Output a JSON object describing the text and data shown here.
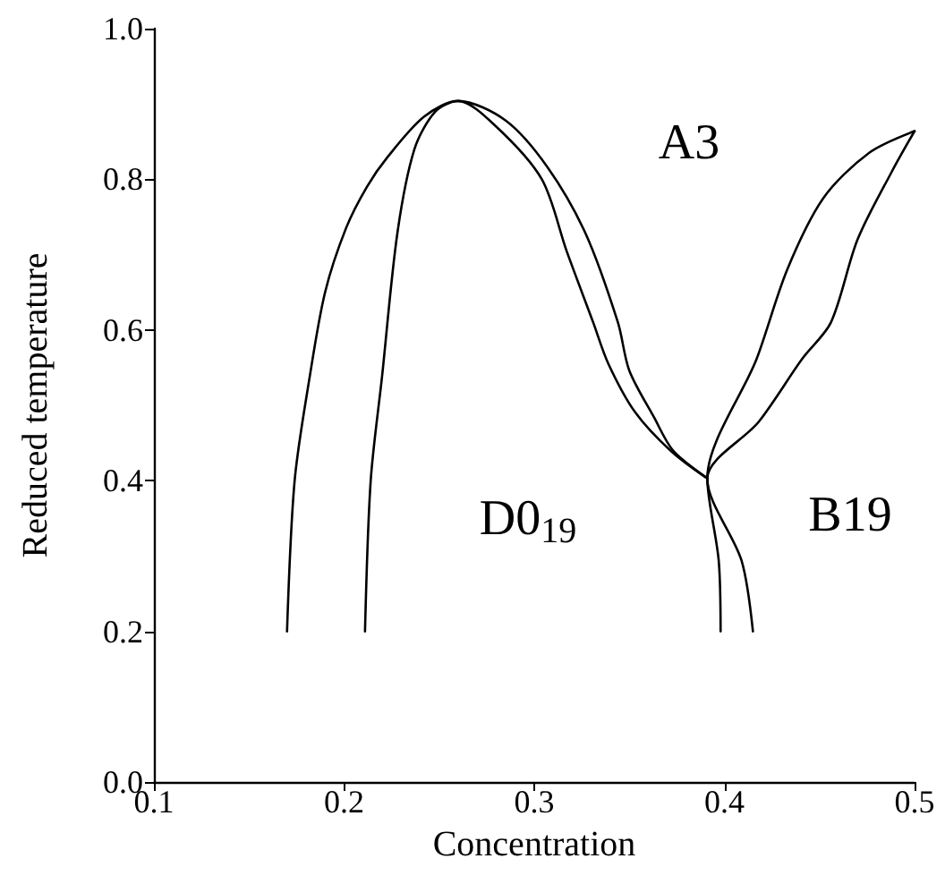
{
  "chart_data": {
    "type": "line",
    "xlabel": "Concentration",
    "ylabel": "Reduced temperature",
    "xlim": [
      0.1,
      0.5
    ],
    "ylim": [
      0.0,
      1.0
    ],
    "xticks": [
      0.1,
      0.2,
      0.3,
      0.4,
      0.5
    ],
    "yticks": [
      {
        "value": 0,
        "label": "0.0"
      },
      0.2,
      0.4,
      0.6,
      0.8,
      {
        "value": 1,
        "label": "1.0"
      }
    ],
    "grid": false,
    "marker": "none",
    "line_style": "solid",
    "series": [
      {
        "color": "#000000",
        "x": [
          0.17,
          0.174,
          0.182,
          0.19,
          0.201,
          0.212,
          0.223,
          0.242,
          0.26,
          0.285,
          0.307,
          0.327,
          0.344,
          0.35,
          0.363,
          0.373,
          0.391
        ],
        "values": [
          0.2,
          0.4,
          0.539,
          0.65,
          0.735,
          0.79,
          0.83,
          0.883,
          0.904,
          0.878,
          0.816,
          0.728,
          0.61,
          0.546,
          0.484,
          0.44,
          0.403
        ]
      },
      {
        "color": "#000000",
        "x": [
          0.211,
          0.214,
          0.22,
          0.228,
          0.237,
          0.248,
          0.26,
          0.28,
          0.304,
          0.317,
          0.331,
          0.339,
          0.353,
          0.372,
          0.391
        ],
        "values": [
          0.2,
          0.4,
          0.539,
          0.728,
          0.84,
          0.89,
          0.904,
          0.87,
          0.8,
          0.705,
          0.61,
          0.555,
          0.491,
          0.439,
          0.403
        ]
      },
      {
        "color": "#000000",
        "x": [
          0.415,
          0.409,
          0.391,
          0.417,
          0.433,
          0.452,
          0.476,
          0.5
        ],
        "values": [
          0.2,
          0.294,
          0.403,
          0.562,
          0.68,
          0.775,
          0.835,
          0.864
        ]
      },
      {
        "color": "#000000",
        "x": [
          0.398,
          0.397,
          0.391,
          0.418,
          0.441,
          0.456,
          0.47,
          0.488,
          0.5
        ],
        "values": [
          0.2,
          0.294,
          0.403,
          0.478,
          0.562,
          0.61,
          0.72,
          0.81,
          0.864
        ]
      }
    ],
    "annotations": [
      "A3",
      "D0$_{19}$",
      "B19"
    ]
  }
}
